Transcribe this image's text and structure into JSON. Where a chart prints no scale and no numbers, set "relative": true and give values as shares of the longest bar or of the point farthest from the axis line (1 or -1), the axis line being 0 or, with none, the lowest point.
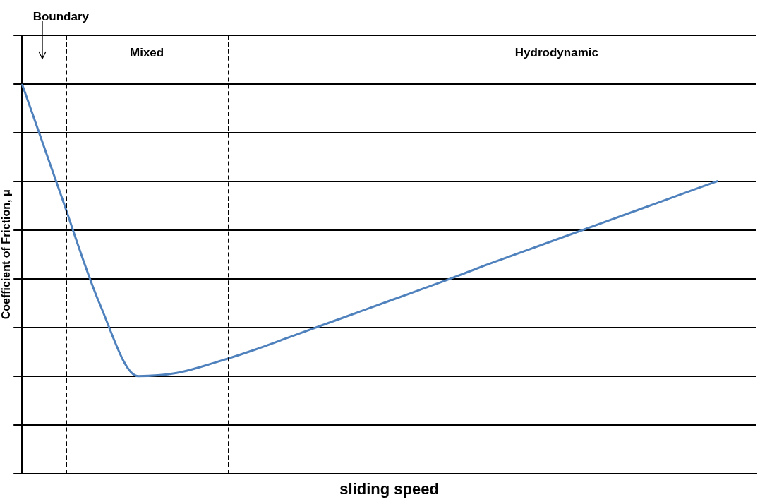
{
  "chart_data": {
    "type": "line",
    "relative": true,
    "xlabel": "sliding speed",
    "ylabel": "Coefficient of Friction, μ",
    "categories": [
      null,
      null,
      null,
      null,
      null,
      null,
      null,
      null,
      null,
      null,
      null,
      null,
      null,
      null,
      null,
      null,
      null,
      null,
      null,
      null
    ],
    "series": [
      {
        "color": "#4f81bd",
        "values": [
          1.0,
          0.717,
          0.438,
          0.25,
          0.258,
          0.285,
          0.317,
          0.353,
          0.389,
          0.425,
          0.461,
          0.497,
          0.535,
          0.571,
          0.607,
          0.643,
          0.679,
          0.715,
          0.751,
          null
        ]
      }
    ],
    "annotations": [
      "Boundary",
      "Mixed",
      "Hydrodynamic"
    ],
    "grid": "y",
    "legend": false,
    "marker": "none",
    "line_style": "solid"
  }
}
